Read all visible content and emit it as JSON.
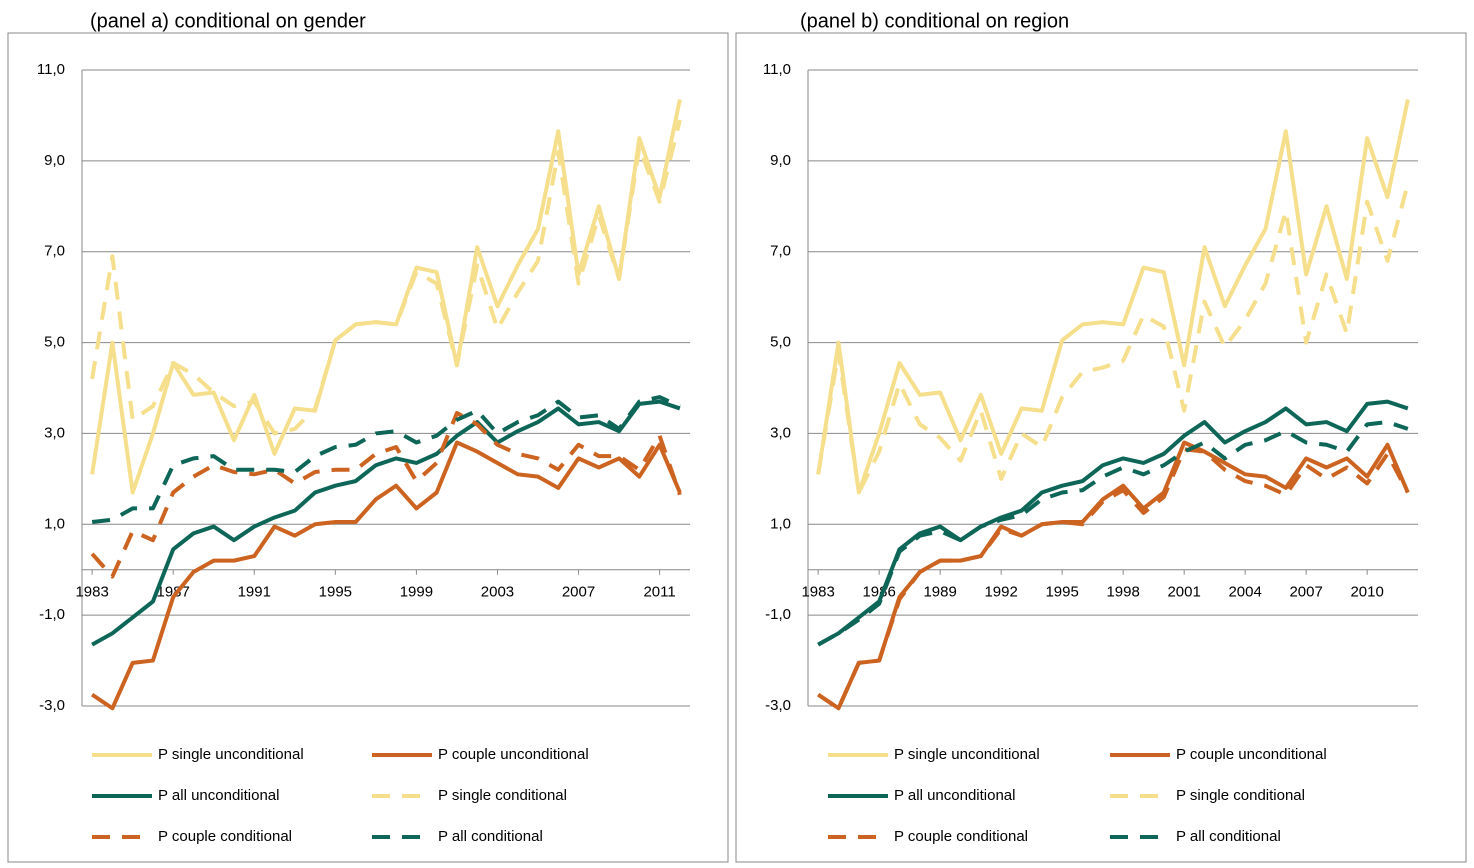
{
  "chart_data": [
    {
      "type": "line",
      "title": "(panel a) conditional on gender",
      "x": [
        1983,
        1984,
        1985,
        1986,
        1987,
        1988,
        1989,
        1990,
        1991,
        1992,
        1993,
        1994,
        1995,
        1996,
        1997,
        1998,
        1999,
        2000,
        2001,
        2002,
        2003,
        2004,
        2005,
        2006,
        2007,
        2008,
        2009,
        2010,
        2011,
        2012
      ],
      "xlim": [
        1982.5,
        2012.5
      ],
      "xticks": [
        1983,
        1987,
        1991,
        1995,
        1999,
        2003,
        2007,
        2011
      ],
      "ylim": [
        -3,
        11
      ],
      "yticks": [
        {
          "value": -3,
          "label": "-3,0"
        },
        {
          "value": -1,
          "label": "-1,0"
        },
        {
          "value": 1,
          "label": "1,0"
        },
        {
          "value": 3,
          "label": "3,0"
        },
        {
          "value": 5,
          "label": "5,0"
        },
        {
          "value": 7,
          "label": "7,0"
        },
        {
          "value": 9,
          "label": "9,0"
        },
        {
          "value": 11,
          "label": "11,0"
        }
      ],
      "grid": true,
      "legend": "bottom",
      "series": [
        {
          "name": "P single unconditional",
          "color": "#f5df8c",
          "linestyle": "solid",
          "values": [
            2.1,
            5.0,
            1.7,
            3.0,
            4.55,
            3.85,
            3.9,
            2.85,
            3.85,
            2.55,
            3.55,
            3.5,
            5.05,
            5.4,
            5.45,
            5.4,
            6.65,
            6.55,
            4.5,
            7.1,
            5.8,
            6.7,
            7.5,
            9.65,
            6.5,
            8.0,
            6.4,
            9.5,
            8.2,
            10.35
          ]
        },
        {
          "name": "P couple unconditional",
          "color": "#cd6320",
          "linestyle": "solid",
          "values": [
            -2.75,
            -3.05,
            -2.05,
            -2.0,
            -0.6,
            -0.05,
            0.2,
            0.2,
            0.3,
            0.95,
            0.75,
            1.0,
            1.05,
            1.05,
            1.55,
            1.85,
            1.35,
            1.7,
            2.8,
            2.6,
            2.35,
            2.1,
            2.05,
            1.8,
            2.45,
            2.25,
            2.45,
            2.05,
            2.75,
            1.7
          ]
        },
        {
          "name": "P all unconditional",
          "color": "#0d6657",
          "linestyle": "solid",
          "values": [
            -1.65,
            -1.4,
            -1.05,
            -0.7,
            0.45,
            0.8,
            0.95,
            0.65,
            0.95,
            1.15,
            1.3,
            1.7,
            1.85,
            1.95,
            2.3,
            2.45,
            2.35,
            2.55,
            2.95,
            3.25,
            2.8,
            3.05,
            3.25,
            3.55,
            3.2,
            3.25,
            3.05,
            3.65,
            3.7,
            3.55
          ]
        },
        {
          "name": "P single conditional",
          "color": "#f5df8c",
          "linestyle": "dashed",
          "values": [
            4.2,
            6.9,
            3.3,
            3.6,
            4.55,
            4.3,
            3.9,
            3.6,
            3.7,
            3.0,
            3.1,
            3.55,
            5.05,
            5.4,
            5.45,
            5.4,
            6.55,
            6.3,
            4.5,
            6.7,
            5.3,
            6.1,
            6.8,
            9.2,
            6.3,
            7.8,
            6.4,
            9.3,
            8.1,
            9.9
          ]
        },
        {
          "name": "P couple conditional",
          "color": "#cd6320",
          "linestyle": "dashed",
          "values": [
            0.35,
            -0.15,
            0.85,
            0.65,
            1.7,
            2.05,
            2.3,
            2.15,
            2.1,
            2.2,
            1.9,
            2.15,
            2.2,
            2.2,
            2.55,
            2.7,
            1.95,
            2.35,
            3.45,
            3.2,
            2.75,
            2.55,
            2.45,
            2.2,
            2.75,
            2.5,
            2.5,
            2.2,
            2.95,
            1.65
          ]
        },
        {
          "name": "P all conditional",
          "color": "#0d6657",
          "linestyle": "dashed",
          "values": [
            1.05,
            1.1,
            1.35,
            1.35,
            2.3,
            2.45,
            2.5,
            2.2,
            2.2,
            2.2,
            2.15,
            2.5,
            2.7,
            2.75,
            3.0,
            3.05,
            2.8,
            2.95,
            3.3,
            3.5,
            3.0,
            3.25,
            3.4,
            3.7,
            3.35,
            3.4,
            3.1,
            3.7,
            3.8,
            3.6
          ]
        }
      ]
    },
    {
      "type": "line",
      "title": "(panel b) conditional on region",
      "x": [
        1983,
        1984,
        1985,
        1986,
        1987,
        1988,
        1989,
        1990,
        1991,
        1992,
        1993,
        1994,
        1995,
        1996,
        1997,
        1998,
        1999,
        2000,
        2001,
        2002,
        2003,
        2004,
        2005,
        2006,
        2007,
        2008,
        2009,
        2010,
        2011,
        2012
      ],
      "xlim": [
        1982.5,
        2012.5
      ],
      "xticks": [
        1983,
        1986,
        1989,
        1992,
        1995,
        1998,
        2001,
        2004,
        2007,
        2010
      ],
      "ylim": [
        -3,
        11
      ],
      "yticks": [
        {
          "value": -3,
          "label": "-3,0"
        },
        {
          "value": -1,
          "label": "-1,0"
        },
        {
          "value": 1,
          "label": "1,0"
        },
        {
          "value": 3,
          "label": "3,0"
        },
        {
          "value": 5,
          "label": "5,0"
        },
        {
          "value": 7,
          "label": "7,0"
        },
        {
          "value": 9,
          "label": "9,0"
        },
        {
          "value": 11,
          "label": "11,0"
        }
      ],
      "grid": true,
      "legend": "bottom",
      "series": [
        {
          "name": "P single unconditional",
          "color": "#f5df8c",
          "linestyle": "solid",
          "values": [
            2.1,
            5.0,
            1.7,
            3.0,
            4.55,
            3.85,
            3.9,
            2.85,
            3.85,
            2.55,
            3.55,
            3.5,
            5.05,
            5.4,
            5.45,
            5.4,
            6.65,
            6.55,
            4.5,
            7.1,
            5.8,
            6.7,
            7.5,
            9.65,
            6.5,
            8.0,
            6.4,
            9.5,
            8.2,
            10.35
          ]
        },
        {
          "name": "P couple unconditional",
          "color": "#cd6320",
          "linestyle": "solid",
          "values": [
            -2.75,
            -3.05,
            -2.05,
            -2.0,
            -0.6,
            -0.05,
            0.2,
            0.2,
            0.3,
            0.95,
            0.75,
            1.0,
            1.05,
            1.05,
            1.55,
            1.85,
            1.35,
            1.7,
            2.8,
            2.6,
            2.35,
            2.1,
            2.05,
            1.8,
            2.45,
            2.25,
            2.45,
            2.05,
            2.75,
            1.7
          ]
        },
        {
          "name": "P all unconditional",
          "color": "#0d6657",
          "linestyle": "solid",
          "values": [
            -1.65,
            -1.4,
            -1.05,
            -0.7,
            0.45,
            0.8,
            0.95,
            0.65,
            0.95,
            1.15,
            1.3,
            1.7,
            1.85,
            1.95,
            2.3,
            2.45,
            2.35,
            2.55,
            2.95,
            3.25,
            2.8,
            3.05,
            3.25,
            3.55,
            3.2,
            3.25,
            3.05,
            3.65,
            3.7,
            3.55
          ]
        },
        {
          "name": "P single conditional",
          "color": "#f5df8c",
          "linestyle": "dashed",
          "values": [
            2.1,
            4.8,
            1.7,
            2.6,
            4.1,
            3.2,
            2.9,
            2.4,
            3.5,
            2.0,
            3.0,
            2.7,
            3.8,
            4.35,
            4.45,
            4.6,
            5.6,
            5.35,
            3.5,
            5.9,
            4.9,
            5.5,
            6.3,
            7.9,
            5.0,
            6.5,
            5.2,
            8.1,
            6.8,
            8.5
          ]
        },
        {
          "name": "P couple conditional",
          "color": "#cd6320",
          "linestyle": "dashed",
          "values": [
            -2.75,
            -3.05,
            -2.05,
            -2.0,
            -0.65,
            -0.05,
            0.2,
            0.2,
            0.3,
            0.9,
            0.75,
            1.0,
            1.05,
            1.0,
            1.5,
            1.75,
            1.25,
            1.6,
            2.65,
            2.6,
            2.2,
            1.95,
            1.85,
            1.65,
            2.3,
            2.0,
            2.25,
            1.9,
            2.55,
            1.7
          ]
        },
        {
          "name": "P all conditional",
          "color": "#0d6657",
          "linestyle": "dashed",
          "values": [
            -1.65,
            -1.4,
            -1.1,
            -0.75,
            0.4,
            0.75,
            0.85,
            0.65,
            0.95,
            1.1,
            1.2,
            1.55,
            1.7,
            1.75,
            2.05,
            2.25,
            2.1,
            2.3,
            2.6,
            2.8,
            2.45,
            2.75,
            2.85,
            3.05,
            2.8,
            2.75,
            2.6,
            3.2,
            3.25,
            3.1
          ]
        }
      ]
    }
  ]
}
